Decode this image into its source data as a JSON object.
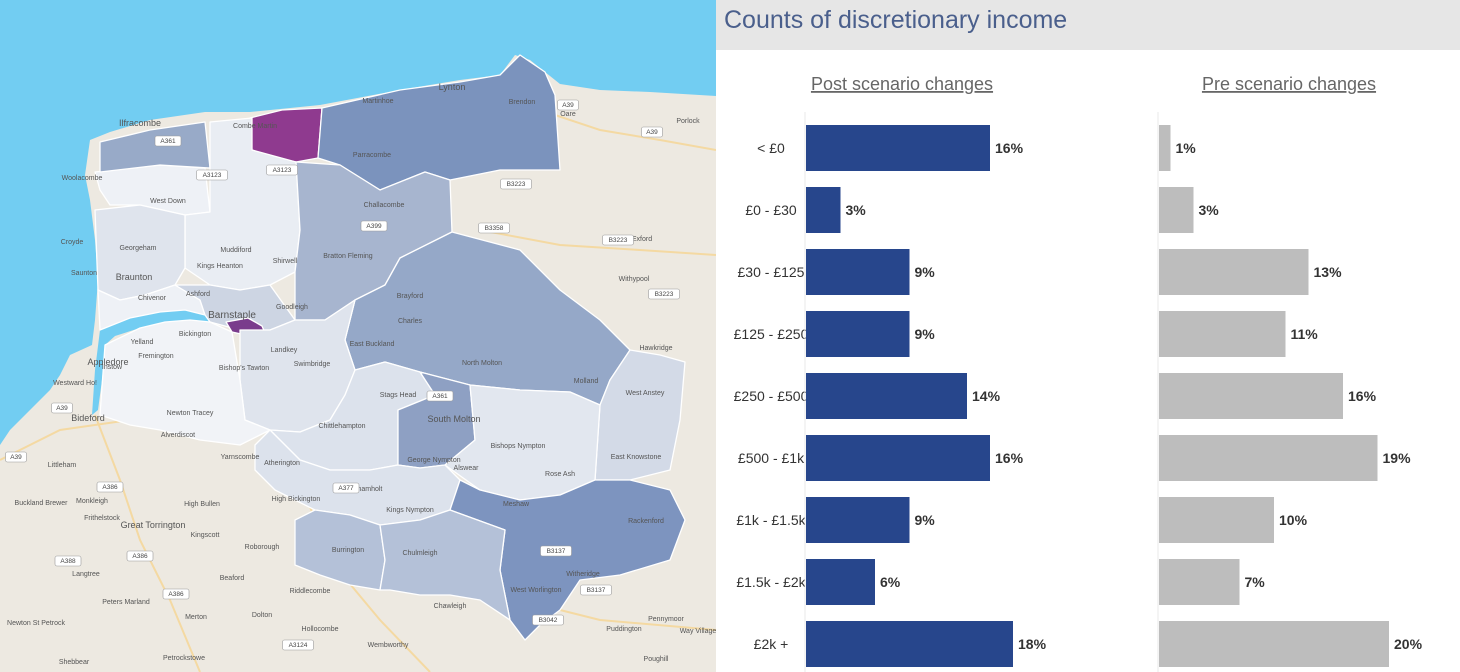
{
  "panel": {
    "title": "Counts of discretionary income"
  },
  "map": {
    "sea_color": "#72cdf2",
    "land_color": "#ede9e1",
    "highlight_color": "#7a3c8c",
    "place_labels": [
      "Ilfracombe",
      "Combe Martin",
      "Martinhoe",
      "Lynton",
      "Brendon",
      "Oare",
      "Porlock",
      "Woolacombe",
      "West Down",
      "Parracombe",
      "Challacombe",
      "Croyde",
      "Georgeham",
      "Muddiford",
      "Braunton",
      "Kings Heanton",
      "Shirwell",
      "Bratton Fleming",
      "Exford",
      "Withypool",
      "Saunton",
      "Chivenor",
      "Ashford",
      "Brayford",
      "Barnstaple",
      "Goodleigh",
      "Charles",
      "Hawkridge",
      "Yelland",
      "Bickington",
      "Landkey",
      "East Buckland",
      "North Molton",
      "Instow",
      "Fremington",
      "Bishop's Tawton",
      "Swimbridge",
      "Molland",
      "Westward Ho!",
      "Appledore",
      "Stags Head",
      "South Molton",
      "West Anstey",
      "Bideford",
      "Newton Tracey",
      "Alverdiscot",
      "Chittlehampton",
      "Bishops Nympton",
      "Yarnscombe",
      "George Nympton",
      "Alswear",
      "East Knowstone",
      "Littleham",
      "Atherington",
      "Rose Ash",
      "High Bickington",
      "Buckland Brewer",
      "Monkleigh",
      "High Bullen",
      "Chittlehamholt",
      "Frithelstock",
      "Great Torrington",
      "Kings Nympton",
      "Meshaw",
      "Rackenford",
      "Kingscott",
      "Roborough",
      "Burrington",
      "Langtree",
      "Beaford",
      "Chulmleigh",
      "Witheridge",
      "Peters Marland",
      "Riddlecombe",
      "West Worlington",
      "Newton St Petrock",
      "Merton",
      "Dolton",
      "Chawleigh",
      "Puddington",
      "Hollocombe",
      "Pennymoor",
      "Way Village",
      "Wembworthy",
      "Shebbear",
      "Petrockstowe",
      "Poughill"
    ],
    "road_labels": [
      "A39",
      "A39",
      "A361",
      "A3123",
      "A3123",
      "A399",
      "B3223",
      "B3358",
      "B3223",
      "B3223",
      "A361",
      "A39",
      "A39",
      "A386",
      "A386",
      "A388",
      "A386",
      "A377",
      "A3124",
      "B3137",
      "B3137",
      "B3042"
    ]
  },
  "chart_data": [
    {
      "type": "bar",
      "orientation": "horizontal",
      "title": "Post scenario changes",
      "color": "#27468c",
      "categories": [
        "< £0",
        "£0 - £30",
        "£30 - £125",
        "£125 - £250",
        "£250 - £500",
        "£500 - £1k",
        "£1k - £1.5k",
        "£1.5k - £2k",
        "£2k +"
      ],
      "values": [
        16,
        3,
        9,
        9,
        14,
        16,
        9,
        6,
        18
      ],
      "value_labels": [
        "16%",
        "3%",
        "9%",
        "9%",
        "14%",
        "16%",
        "9%",
        "6%",
        "18%"
      ],
      "unit": "%",
      "grid": false
    },
    {
      "type": "bar",
      "orientation": "horizontal",
      "title": "Pre scenario changes",
      "color": "#bdbdbd",
      "categories": [
        "< £0",
        "£0 - £30",
        "£30 - £125",
        "£125 - £250",
        "£250 - £500",
        "£500 - £1k",
        "£1k - £1.5k",
        "£1.5k - £2k",
        "£2k +"
      ],
      "values": [
        1,
        3,
        13,
        11,
        16,
        19,
        10,
        7,
        20
      ],
      "value_labels": [
        "1%",
        "3%",
        "13%",
        "11%",
        "16%",
        "19%",
        "10%",
        "7%",
        "20%"
      ],
      "unit": "%",
      "grid": false
    }
  ]
}
